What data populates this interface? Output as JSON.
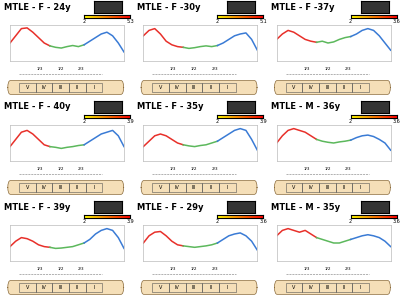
{
  "chart_data": [
    {
      "type": "line",
      "title": "MTLE - F - 24y",
      "xlim": [
        0,
        100
      ],
      "ylim": [
        0,
        10
      ],
      "tick_labels": false,
      "colorbar": {
        "range": [
          2,
          5.3
        ],
        "ticks": [
          2,
          5.3
        ]
      },
      "series": [
        {
          "color": "#e8302a",
          "x": [
            0,
            5,
            10,
            15,
            20,
            25,
            30,
            35
          ],
          "values": [
            5,
            7,
            9,
            9.2,
            8,
            6.5,
            5,
            4.2
          ]
        },
        {
          "color": "#5cb85c",
          "x": [
            35,
            40,
            45,
            50,
            55,
            60,
            65
          ],
          "values": [
            4.2,
            3.8,
            3.6,
            4,
            4.3,
            4,
            4.5
          ]
        },
        {
          "color": "#3a7bd5",
          "x": [
            65,
            70,
            75,
            80,
            85,
            90,
            95,
            100
          ],
          "values": [
            4.5,
            5.5,
            6.5,
            7.5,
            8,
            7,
            5,
            2.5
          ]
        }
      ]
    },
    {
      "type": "line",
      "title": "MTLE - F -30y",
      "xlim": [
        0,
        100
      ],
      "ylim": [
        0,
        10
      ],
      "tick_labels": false,
      "colorbar": {
        "range": [
          2,
          5.1
        ],
        "ticks": [
          2,
          5.1
        ]
      },
      "series": [
        {
          "color": "#e8302a",
          "x": [
            0,
            5,
            10,
            15,
            20,
            25,
            30,
            35
          ],
          "values": [
            7,
            8.5,
            9,
            7.5,
            5.5,
            4.5,
            4,
            3.8
          ]
        },
        {
          "color": "#5cb85c",
          "x": [
            35,
            40,
            45,
            50,
            55,
            60,
            65
          ],
          "values": [
            3.8,
            3.5,
            3.7,
            4,
            4.2,
            4,
            4.3
          ]
        },
        {
          "color": "#3a7bd5",
          "x": [
            65,
            70,
            75,
            80,
            85,
            90,
            95,
            100
          ],
          "values": [
            4.3,
            5,
            6,
            7,
            7.5,
            7.8,
            6,
            3
          ]
        }
      ]
    },
    {
      "type": "line",
      "title": "MTLE - F -37y",
      "xlim": [
        0,
        100
      ],
      "ylim": [
        0,
        10
      ],
      "tick_labels": false,
      "colorbar": {
        "range": [
          2,
          3.6
        ],
        "ticks": [
          2,
          3.6
        ]
      },
      "series": [
        {
          "color": "#e8302a",
          "x": [
            0,
            5,
            10,
            15,
            20,
            25,
            30,
            35
          ],
          "values": [
            6,
            7.5,
            8.5,
            8,
            7,
            6,
            5.5,
            5.2
          ]
        },
        {
          "color": "#5cb85c",
          "x": [
            35,
            40,
            45,
            50,
            55,
            60,
            65
          ],
          "values": [
            5.2,
            5.5,
            5,
            5.3,
            6,
            6.5,
            6.8
          ]
        },
        {
          "color": "#3a7bd5",
          "x": [
            65,
            70,
            75,
            80,
            85,
            90,
            95,
            100
          ],
          "values": [
            6.8,
            7.5,
            8.5,
            9,
            8.5,
            7,
            5,
            3
          ]
        }
      ]
    },
    {
      "type": "line",
      "title": "MTLE - F - 40y",
      "xlim": [
        0,
        100
      ],
      "ylim": [
        0,
        10
      ],
      "tick_labels": false,
      "colorbar": {
        "range": [
          2,
          3.9
        ],
        "ticks": [
          2,
          3.9
        ]
      },
      "series": [
        {
          "color": "#e8302a",
          "x": [
            0,
            5,
            10,
            15,
            20,
            25,
            30,
            35
          ],
          "values": [
            4,
            6,
            8,
            8.5,
            7.5,
            6,
            4.5,
            4
          ]
        },
        {
          "color": "#5cb85c",
          "x": [
            35,
            40,
            45,
            50,
            55,
            60,
            65
          ],
          "values": [
            4,
            3.8,
            3.5,
            3.8,
            4,
            4.3,
            4.5
          ]
        },
        {
          "color": "#3a7bd5",
          "x": [
            65,
            70,
            75,
            80,
            85,
            90,
            95,
            100
          ],
          "values": [
            4.5,
            5.5,
            6.5,
            7.5,
            8,
            8.5,
            7,
            4
          ]
        }
      ]
    },
    {
      "type": "line",
      "title": "MTLE - F - 35y",
      "xlim": [
        0,
        100
      ],
      "ylim": [
        0,
        10
      ],
      "tick_labels": false,
      "colorbar": {
        "range": [
          2,
          3.9
        ],
        "ticks": [
          2,
          3.9
        ]
      },
      "series": [
        {
          "color": "#e8302a",
          "x": [
            0,
            5,
            10,
            15,
            20,
            25,
            30,
            35
          ],
          "values": [
            4,
            5.5,
            7,
            7.5,
            7,
            6,
            5,
            4.5
          ]
        },
        {
          "color": "#5cb85c",
          "x": [
            35,
            40,
            45,
            50,
            55,
            60,
            65
          ],
          "values": [
            4.5,
            4.2,
            4,
            4.3,
            4.5,
            5,
            5.5
          ]
        },
        {
          "color": "#3a7bd5",
          "x": [
            65,
            70,
            75,
            80,
            85,
            90,
            95,
            100
          ],
          "values": [
            5.5,
            6.5,
            7.5,
            8.5,
            9,
            8.5,
            6,
            3
          ]
        }
      ]
    },
    {
      "type": "line",
      "title": "MTLE - M - 36y",
      "xlim": [
        0,
        100
      ],
      "ylim": [
        0,
        10
      ],
      "tick_labels": false,
      "colorbar": {
        "range": [
          2,
          3.6
        ],
        "ticks": [
          2,
          3.6
        ]
      },
      "series": [
        {
          "color": "#e8302a",
          "x": [
            0,
            5,
            10,
            15,
            20,
            25,
            30,
            35
          ],
          "values": [
            5,
            7,
            8.5,
            9,
            8.5,
            8,
            7,
            6
          ]
        },
        {
          "color": "#5cb85c",
          "x": [
            35,
            40,
            45,
            50,
            55,
            60,
            65
          ],
          "values": [
            6,
            5.5,
            5.2,
            5,
            5.3,
            5.5,
            5.8
          ]
        },
        {
          "color": "#3a7bd5",
          "x": [
            65,
            70,
            75,
            80,
            85,
            90,
            95,
            100
          ],
          "values": [
            5.8,
            6.5,
            7,
            7.2,
            6.8,
            6,
            5,
            3
          ]
        }
      ]
    },
    {
      "type": "line",
      "title": "MTLE - F - 39y",
      "xlim": [
        0,
        100
      ],
      "ylim": [
        0,
        10
      ],
      "tick_labels": false,
      "colorbar": {
        "range": [
          2,
          3.9
        ],
        "ticks": [
          2,
          3.9
        ]
      },
      "series": [
        {
          "color": "#e8302a",
          "x": [
            0,
            5,
            10,
            15,
            20,
            25,
            30,
            35
          ],
          "values": [
            4,
            5.5,
            6.5,
            6.2,
            5.5,
            4.5,
            4,
            3.8
          ]
        },
        {
          "color": "#5cb85c",
          "x": [
            35,
            40,
            45,
            50,
            55,
            60,
            65
          ],
          "values": [
            3.8,
            3.5,
            3.6,
            3.8,
            4,
            4.5,
            5
          ]
        },
        {
          "color": "#3a7bd5",
          "x": [
            65,
            70,
            75,
            80,
            85,
            90,
            95,
            100
          ],
          "values": [
            5,
            6,
            7.5,
            8.5,
            9,
            8.5,
            6.5,
            3.5
          ]
        }
      ]
    },
    {
      "type": "line",
      "title": "MTLE - F - 29y",
      "xlim": [
        0,
        100
      ],
      "ylim": [
        0,
        10
      ],
      "tick_labels": false,
      "colorbar": {
        "range": [
          2,
          3.6
        ],
        "ticks": [
          2,
          3.6
        ]
      },
      "series": [
        {
          "color": "#e8302a",
          "x": [
            0,
            5,
            10,
            15,
            20,
            25,
            30,
            35
          ],
          "values": [
            5,
            7,
            8,
            8.2,
            7,
            5.5,
            4.5,
            4.2
          ]
        },
        {
          "color": "#5cb85c",
          "x": [
            35,
            40,
            45,
            50,
            55,
            60,
            65
          ],
          "values": [
            4.2,
            4,
            3.8,
            4,
            4.2,
            4.5,
            5
          ]
        },
        {
          "color": "#3a7bd5",
          "x": [
            65,
            70,
            75,
            80,
            85,
            90,
            95,
            100
          ],
          "values": [
            5,
            6,
            7,
            7.5,
            7.8,
            7,
            5.5,
            3
          ]
        }
      ]
    },
    {
      "type": "line",
      "title": "MTLE - M - 35y",
      "xlim": [
        0,
        100
      ],
      "ylim": [
        0,
        10
      ],
      "tick_labels": false,
      "colorbar": {
        "range": [
          2,
          3.6
        ],
        "ticks": [
          2,
          3.6
        ]
      },
      "series": [
        {
          "color": "#e8302a",
          "x": [
            0,
            5,
            10,
            15,
            20,
            25,
            30,
            35
          ],
          "values": [
            7,
            8.5,
            9,
            8.5,
            8,
            8.5,
            7.5,
            6.5
          ]
        },
        {
          "color": "#5cb85c",
          "x": [
            35,
            40,
            45,
            50,
            55,
            60,
            65
          ],
          "values": [
            6.5,
            6,
            5.5,
            5,
            5,
            5.5,
            6
          ]
        },
        {
          "color": "#3a7bd5",
          "x": [
            65,
            70,
            75,
            80,
            85,
            90,
            95,
            100
          ],
          "values": [
            6,
            6.5,
            7,
            7.3,
            7,
            6.5,
            5.5,
            4
          ]
        }
      ]
    }
  ],
  "callosum_regions": [
    "V",
    "IV",
    "III",
    "II",
    "I"
  ],
  "callosum_fractions": [
    "1/3",
    "1/2",
    "2/3"
  ]
}
